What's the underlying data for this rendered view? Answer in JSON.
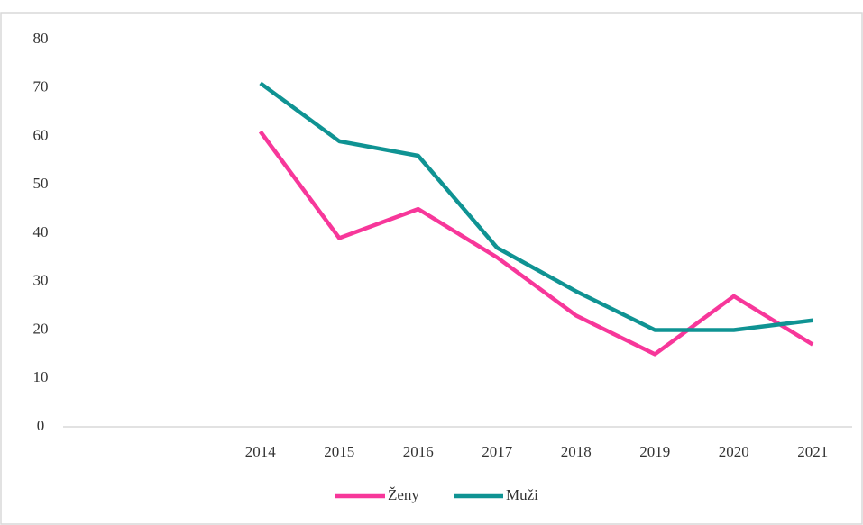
{
  "chart_data": {
    "type": "line",
    "categories": [
      null,
      null,
      "2014",
      "2015",
      "2016",
      "2017",
      "2018",
      "2019",
      "2020",
      "2021"
    ],
    "series": [
      {
        "name": "Ženy",
        "color": "#f7379a",
        "values": [
          null,
          null,
          61,
          39,
          45,
          35,
          23,
          15,
          27,
          17
        ]
      },
      {
        "name": "Muži",
        "color": "#0f9393",
        "values": [
          null,
          null,
          71,
          59,
          56,
          37,
          28,
          20,
          20,
          22
        ]
      }
    ],
    "ylim": [
      0,
      80
    ],
    "yticks": [
      0,
      10,
      20,
      30,
      40,
      50,
      60,
      70,
      80
    ],
    "grid": false,
    "legend": "bottom"
  }
}
